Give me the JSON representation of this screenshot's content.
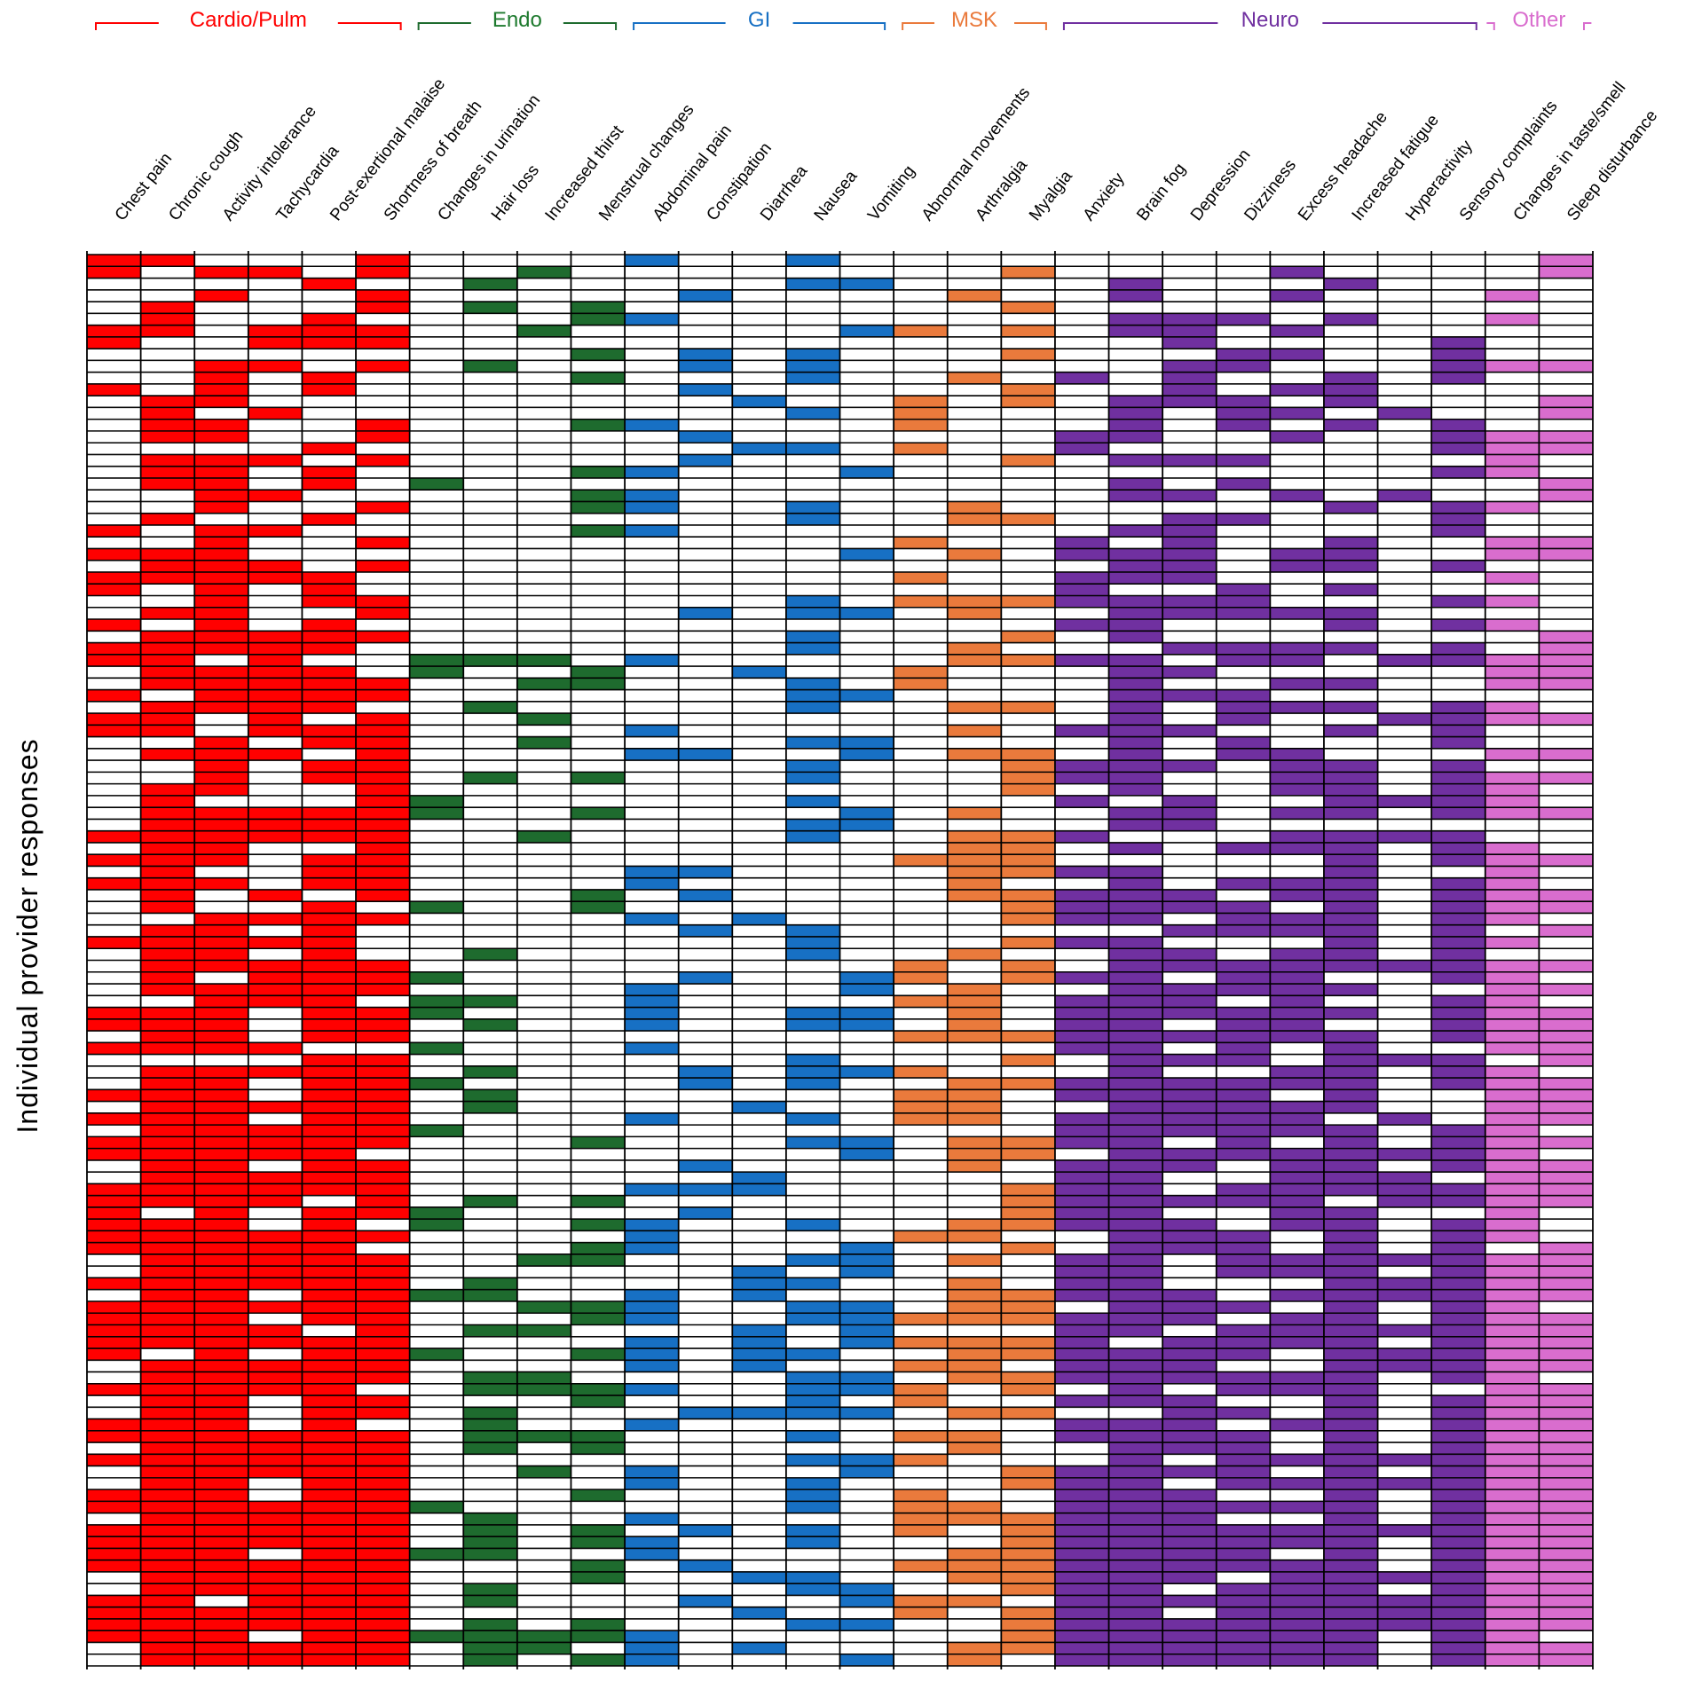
{
  "chart_data": {
    "type": "heatmap",
    "title": "",
    "ylabel": "Individual provider responses",
    "xlabel": "",
    "n_rows": 120,
    "groups": [
      {
        "name": "Cardio/Pulm",
        "color": "#ff0000",
        "label_color": "#ff0000",
        "columns": [
          "Chest pain",
          "Chronic cough",
          "Activity intolerance",
          "Tachycardia",
          "Post-exertional malaise",
          "Shortness of breath"
        ]
      },
      {
        "name": "Endo",
        "color": "#1e6b2e",
        "label_color": "#1e7a2e",
        "columns": [
          "Changes in urination",
          "Hair loss",
          "Increased thirst",
          "Menstrual changes"
        ]
      },
      {
        "name": "GI",
        "color": "#1770c4",
        "label_color": "#1770c4",
        "columns": [
          "Abdominal pain",
          "Constipation",
          "Diarrhea",
          "Nausea",
          "Vomiting"
        ]
      },
      {
        "name": "MSK",
        "color": "#ea7a3c",
        "label_color": "#ea7a3c",
        "columns": [
          "Abnormal movements",
          "Arthralgia",
          "Myalgia"
        ]
      },
      {
        "name": "Neuro",
        "color": "#7030a0",
        "label_color": "#7030a0",
        "columns": [
          "Anxiety",
          "Brain fog",
          "Depression",
          "Dizziness",
          "Excess headache",
          "Increased fatigue",
          "Hyperactivity",
          "Sensory complaints"
        ]
      },
      {
        "name": "Other",
        "color": "#d96dce",
        "label_color": "#d96dce",
        "columns": [
          "Changes in taste/smell",
          "Sleep disturbance"
        ]
      }
    ],
    "selection_probability_by_column": [
      0.42,
      0.78,
      0.86,
      0.62,
      0.8,
      0.74,
      0.14,
      0.26,
      0.14,
      0.3,
      0.42,
      0.18,
      0.16,
      0.34,
      0.3,
      0.26,
      0.42,
      0.48,
      0.62,
      0.92,
      0.58,
      0.56,
      0.6,
      0.84,
      0.14,
      0.66,
      0.74,
      0.62
    ],
    "random_seed": 12345,
    "legend": "none"
  }
}
